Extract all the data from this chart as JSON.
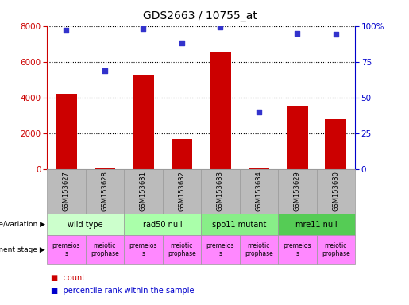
{
  "title": "GDS2663 / 10755_at",
  "samples": [
    "GSM153627",
    "GSM153628",
    "GSM153631",
    "GSM153632",
    "GSM153633",
    "GSM153634",
    "GSM153629",
    "GSM153630"
  ],
  "counts": [
    4200,
    100,
    5300,
    1700,
    6500,
    100,
    3550,
    2800
  ],
  "percentiles": [
    97,
    69,
    98,
    88,
    99,
    40,
    95,
    94
  ],
  "ylim_left": [
    0,
    8000
  ],
  "ylim_right": [
    0,
    100
  ],
  "yticks_left": [
    0,
    2000,
    4000,
    6000,
    8000
  ],
  "yticks_right": [
    0,
    25,
    50,
    75,
    100
  ],
  "bar_color": "#cc0000",
  "dot_color": "#3333cc",
  "grid_color": "#000000",
  "bg_color": "#ffffff",
  "genotype_groups": [
    {
      "label": "wild type",
      "span": [
        0,
        2
      ],
      "color": "#ccffcc"
    },
    {
      "label": "rad50 null",
      "span": [
        2,
        4
      ],
      "color": "#aaffaa"
    },
    {
      "label": "spo11 mutant",
      "span": [
        4,
        6
      ],
      "color": "#88ee88"
    },
    {
      "label": "mre11 null",
      "span": [
        6,
        8
      ],
      "color": "#55cc55"
    }
  ],
  "dev_stage_labels": [
    "premeios\ns",
    "meiotic\nprophase",
    "premeios\ns",
    "meiotic\nprophase",
    "premeios\ns",
    "meiotic\nprophase",
    "premeios\ns",
    "meiotic\nprophase"
  ],
  "dev_stage_color": "#ff88ff",
  "sample_bg_color": "#bbbbbb",
  "left_axis_color": "#cc0000",
  "right_axis_color": "#0000cc",
  "legend_count_color": "#cc0000",
  "legend_pct_color": "#0000cc",
  "title_fontsize": 10,
  "tick_fontsize": 7.5
}
